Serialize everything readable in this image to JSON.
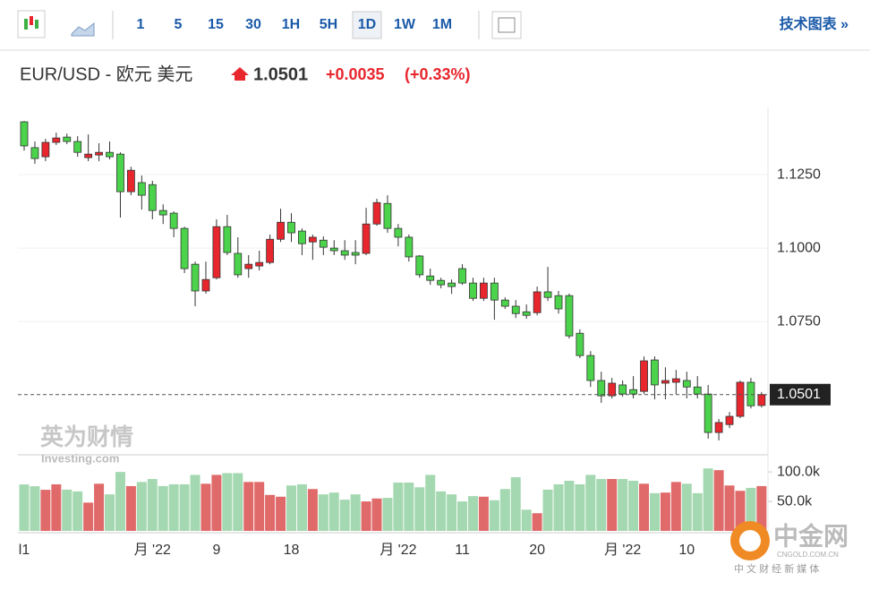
{
  "toolbar": {
    "intervals": [
      "1",
      "5",
      "15",
      "30",
      "1H",
      "5H",
      "1D",
      "1W",
      "1M"
    ],
    "technical": "技术图表 »"
  },
  "header": {
    "title": "EUR/USD - 欧元 美元",
    "change": "+0.0035",
    "change_pct": "(+0.33%)"
  },
  "watermark": {
    "brand": "英为财情",
    "site": "Investing.com"
  },
  "logo": {
    "name": "中金网",
    "site": "CNGOLD.COM.CN",
    "slogan": "中 文 财 经 新 媒 体"
  },
  "chart_data": {
    "type": "candlestick",
    "categories": [
      "l1",
      null,
      null,
      null,
      null,
      null,
      null,
      null,
      null,
      null,
      null,
      null,
      "月 '22",
      null,
      null,
      null,
      null,
      null,
      "9",
      null,
      null,
      null,
      null,
      null,
      null,
      "18",
      null,
      null,
      null,
      null,
      null,
      null,
      null,
      null,
      null,
      "月 '22",
      null,
      null,
      null,
      null,
      null,
      "11",
      null,
      null,
      null,
      null,
      null,
      null,
      "20",
      null,
      null,
      null,
      null,
      null,
      null,
      null,
      "月 '22",
      null,
      null,
      null,
      null,
      null,
      "10",
      null,
      null,
      null,
      null,
      null,
      null,
      null
    ],
    "open": [
      1.143,
      1.1342,
      1.1311,
      1.136,
      1.1378,
      1.1363,
      1.1308,
      1.1317,
      1.1326,
      1.132,
      1.1192,
      1.1223,
      1.1216,
      1.1128,
      1.1119,
      1.1067,
      1.0945,
      1.0854,
      1.0899,
      1.1073,
      1.0982,
      1.093,
      1.0939,
      1.0951,
      1.103,
      1.1088,
      1.1058,
      1.1021,
      1.1027,
      1.1,
      1.0991,
      1.0985,
      1.0982,
      1.1082,
      1.1152,
      1.1067,
      1.1037,
      1.0973,
      1.0905,
      1.089,
      1.0881,
      1.093,
      1.0881,
      1.0829,
      1.0881,
      1.0823,
      1.0802,
      1.0783,
      1.078,
      1.0851,
      1.0838,
      1.0838,
      1.071,
      1.0634,
      1.0549,
      1.0497,
      1.0534,
      1.0518,
      1.0512,
      1.0619,
      1.054,
      1.0543,
      1.0549,
      1.0527,
      1.0503,
      1.0372,
      1.0399,
      1.0427,
      1.0543,
      1.0464
    ],
    "high": [
      1.1433,
      1.1363,
      1.1372,
      1.1393,
      1.139,
      1.1381,
      1.1387,
      1.1357,
      1.1363,
      1.1326,
      1.1277,
      1.1247,
      1.1229,
      1.1149,
      1.1125,
      1.1073,
      1.0954,
      1.0954,
      1.1098,
      1.1113,
      1.1037,
      1.0976,
      1.0991,
      1.1046,
      1.1134,
      1.1119,
      1.1067,
      1.1046,
      1.104,
      1.1027,
      1.1027,
      1.1027,
      1.1137,
      1.1168,
      1.118,
      1.1082,
      1.1046,
      1.0976,
      1.093,
      1.0899,
      1.0893,
      1.0945,
      1.0899,
      1.0899,
      1.0899,
      1.0832,
      1.0823,
      1.0808,
      1.0869,
      1.0936,
      1.0854,
      1.0845,
      1.0723,
      1.0649,
      1.0579,
      1.0558,
      1.0549,
      1.0564,
      1.0631,
      1.0631,
      1.0594,
      1.0585,
      1.0579,
      1.0564,
      1.0534,
      1.0418,
      1.0442,
      1.0549,
      1.0558,
      1.051
    ],
    "low": [
      1.1332,
      1.1287,
      1.1296,
      1.1351,
      1.1354,
      1.1311,
      1.1296,
      1.1296,
      1.1302,
      1.1104,
      1.118,
      1.1131,
      1.1098,
      1.1082,
      1.1037,
      1.0915,
      1.0802,
      1.0845,
      1.0893,
      1.0976,
      1.0899,
      1.0899,
      1.0924,
      1.0945,
      1.1021,
      1.1021,
      1.0976,
      1.096,
      1.0976,
      1.0976,
      1.096,
      1.0945,
      1.0976,
      1.1076,
      1.1052,
      1.1006,
      1.0954,
      1.0899,
      1.0875,
      1.0863,
      1.0844,
      1.0875,
      1.082,
      1.082,
      1.0756,
      1.0793,
      1.0762,
      1.0759,
      1.0771,
      1.082,
      1.0777,
      1.0692,
      1.0625,
      1.0527,
      1.0473,
      1.0488,
      1.0494,
      1.0488,
      1.0503,
      1.0485,
      1.0485,
      1.0503,
      1.0488,
      1.0488,
      1.0351,
      1.0345,
      1.0387,
      1.0421,
      1.0454,
      1.0457
    ],
    "close": [
      1.1348,
      1.1305,
      1.136,
      1.1375,
      1.1363,
      1.1326,
      1.132,
      1.1326,
      1.1311,
      1.1192,
      1.1265,
      1.118,
      1.1128,
      1.1113,
      1.1067,
      1.093,
      1.0854,
      1.0893,
      1.1073,
      1.0985,
      1.0909,
      1.0945,
      1.0951,
      1.103,
      1.1088,
      1.1052,
      1.1015,
      1.1037,
      1.1003,
      1.0991,
      1.0976,
      1.0976,
      1.1082,
      1.1155,
      1.1067,
      1.1037,
      1.097,
      1.0909,
      1.089,
      1.0875,
      1.0869,
      1.0881,
      1.0829,
      1.0881,
      1.0823,
      1.0802,
      1.0777,
      1.0771,
      1.0851,
      1.0832,
      1.0793,
      1.0701,
      1.0634,
      1.0549,
      1.0497,
      1.054,
      1.0503,
      1.0503,
      1.0616,
      1.0534,
      1.0549,
      1.0555,
      1.0527,
      1.0503,
      1.0372,
      1.0406,
      1.0427,
      1.0543,
      1.0463,
      1.0501
    ],
    "volume": [
      78800,
      75800,
      69700,
      79000,
      70000,
      67000,
      48000,
      80000,
      62000,
      100000,
      76000,
      83000,
      88000,
      76000,
      79000,
      79000,
      95000,
      80000,
      95000,
      98000,
      98000,
      83000,
      83000,
      61000,
      58000,
      77000,
      79000,
      71000,
      62000,
      65000,
      53000,
      62000,
      50000,
      55000,
      56000,
      82000,
      82000,
      74000,
      95000,
      67000,
      62000,
      50000,
      59000,
      58000,
      52000,
      71000,
      91000,
      36000,
      30000,
      70000,
      79000,
      85000,
      79000,
      95000,
      88000,
      88000,
      88000,
      85000,
      80000,
      64000,
      65000,
      83000,
      80000,
      64000,
      106000,
      103000,
      77000,
      68000,
      73000,
      76000
    ],
    "last_price": 1.0501,
    "up_color": "#e8262e",
    "down_color": "#4bd34b",
    "volume_up_color": "#e06a6a",
    "volume_down_color": "#a4d8b0",
    "ylim": [
      1.0296,
      1.1479
    ],
    "yticks": [
      {
        "value": 1.125,
        "label": "1.1250"
      },
      {
        "value": 1.1,
        "label": "1.1000"
      },
      {
        "value": 1.075,
        "label": "1.0750"
      }
    ],
    "vlim": [
      0,
      126000
    ],
    "vticks": [
      {
        "value": 100000,
        "label": "100.0k"
      },
      {
        "value": 50000,
        "label": "50.0k"
      }
    ],
    "grid": true
  }
}
